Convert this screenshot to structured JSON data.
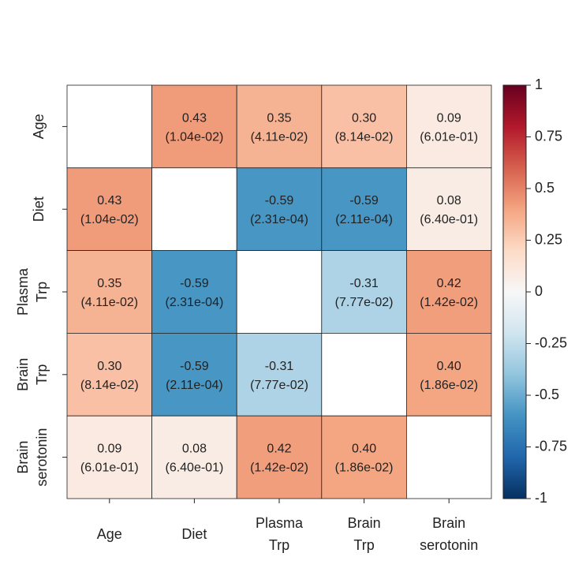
{
  "chart_data": {
    "type": "heatmap",
    "title": "",
    "variables": [
      "Age",
      "Diet",
      "Plasma Trp",
      "Brain Trp",
      "Brain serotonin"
    ],
    "tick_label_lines": [
      [
        "Age"
      ],
      [
        "Diet"
      ],
      [
        "Plasma",
        "Trp"
      ],
      [
        "Brain",
        "Trp"
      ],
      [
        "Brain",
        "serotonin"
      ]
    ],
    "values": [
      [
        null,
        0.43,
        0.35,
        0.3,
        0.09
      ],
      [
        0.43,
        null,
        -0.59,
        -0.59,
        0.08
      ],
      [
        0.35,
        -0.59,
        null,
        -0.31,
        0.42
      ],
      [
        0.3,
        -0.59,
        -0.31,
        null,
        0.4
      ],
      [
        0.09,
        0.08,
        0.42,
        0.4,
        null
      ]
    ],
    "value_labels": [
      [
        null,
        "0.43",
        "0.35",
        "0.30",
        "0.09"
      ],
      [
        "0.43",
        null,
        "-0.59",
        "-0.59",
        "0.08"
      ],
      [
        "0.35",
        "-0.59",
        null,
        "-0.31",
        "0.42"
      ],
      [
        "0.30",
        "-0.59",
        "-0.31",
        null,
        "0.40"
      ],
      [
        "0.09",
        "0.08",
        "0.42",
        "0.40",
        null
      ]
    ],
    "p_values": [
      [
        null,
        "(1.04e-02)",
        "(4.11e-02)",
        "(8.14e-02)",
        "(6.01e-01)"
      ],
      [
        "(1.04e-02)",
        null,
        "(2.31e-04)",
        "(2.11e-04)",
        "(6.40e-01)"
      ],
      [
        "(4.11e-02)",
        "(2.31e-04)",
        null,
        "(7.77e-02)",
        "(1.42e-02)"
      ],
      [
        "(8.14e-02)",
        "(2.11e-04)",
        "(7.77e-02)",
        null,
        "(1.86e-02)"
      ],
      [
        "(6.01e-01)",
        "(6.40e-01)",
        "(1.42e-02)",
        "(1.86e-02)",
        null
      ]
    ],
    "colorbar": {
      "range": [
        -1,
        1
      ],
      "ticks": [
        1,
        0.75,
        0.5,
        0.25,
        0,
        -0.25,
        -0.5,
        -0.75,
        -1
      ],
      "tick_labels": [
        "1",
        "0.75",
        "0.5",
        "0.25",
        "0",
        "-0.25",
        "-0.5",
        "-0.75",
        "-1"
      ],
      "colormap": "RdBu_r"
    },
    "colors": {
      "neg_1": "#053061",
      "neg_08": "#2166ac",
      "neg_06": "#4393c3",
      "neg_04": "#92c5de",
      "neg_02": "#d1e5f0",
      "zero": "#f7f7f7",
      "pos_02": "#fddbc7",
      "pos_04": "#f4a582",
      "pos_06": "#d6604d",
      "pos_08": "#b2182b",
      "pos_1": "#67001f",
      "cell_border": "#222222"
    }
  }
}
